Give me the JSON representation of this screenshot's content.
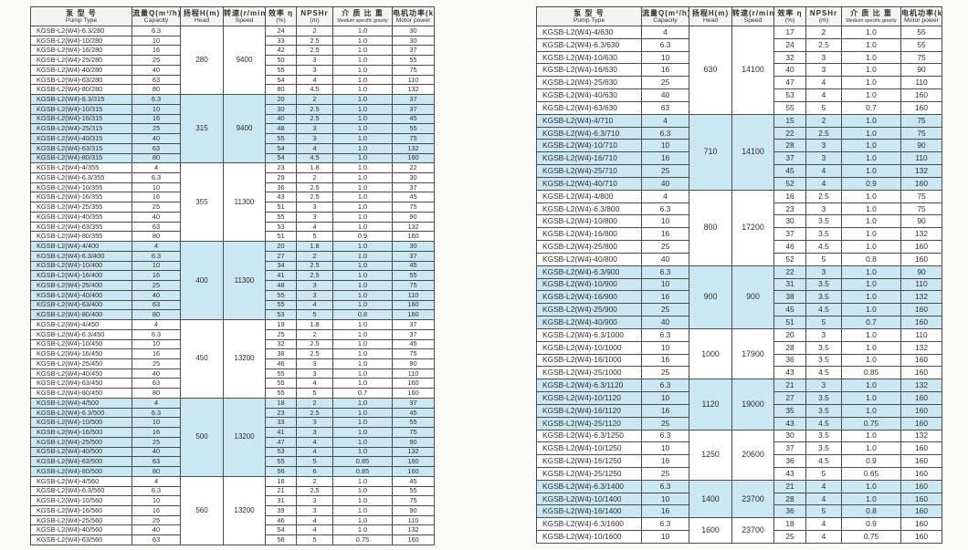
{
  "document": {
    "type": "pump-specification-table",
    "series": "KGSB-L2(W4)"
  },
  "colors": {
    "band_blue": "#cbe7f1",
    "header_bg": "#f4f4f2",
    "border": "#4c4c4c",
    "page_bg": "#fafaf8"
  },
  "columns": [
    {
      "zh": "泵 型 号",
      "en": "Pump Type"
    },
    {
      "zh": "流量Q(m³/h)",
      "en": "Capacity"
    },
    {
      "zh": "扬程H(m)",
      "en": "Head"
    },
    {
      "zh": "转速(r/min)",
      "en": "Speed"
    },
    {
      "zh": "效率 η",
      "en": "(%)"
    },
    {
      "zh": "NPSHr",
      "en": "(m)"
    },
    {
      "zh": "介 质 比 重",
      "en": "Medium specific gravity"
    },
    {
      "zh": "电机功率(kW)",
      "en": "Motor power"
    }
  ],
  "tables": [
    {
      "id": "left",
      "groups": [
        {
          "head": "280",
          "speed": "9400",
          "shaded": false,
          "rows": [
            [
              "KGSB-L2(W4)-6.3/280",
              "6.3",
              "24",
              "2",
              "1.0",
              "30"
            ],
            [
              "KGSB-L2(W4)-10/280",
              "10",
              "33",
              "2.5",
              "1.0",
              "30"
            ],
            [
              "KGSB-L2(W4)-16/280",
              "16",
              "42",
              "2.5",
              "1.0",
              "37"
            ],
            [
              "KGSB-L2(W4)-25/280",
              "25",
              "50",
              "3",
              "1.0",
              "55"
            ],
            [
              "KGSB-L2(W4)-40/280",
              "40",
              "55",
              "3",
              "1.0",
              "75"
            ],
            [
              "KGSB-L2(W4)-63/280",
              "63",
              "54",
              "4",
              "1.0",
              "110"
            ],
            [
              "KGSB-L2(W4)-80/280",
              "80",
              "80",
              "4.5",
              "1.0",
              "132"
            ]
          ]
        },
        {
          "head": "315",
          "speed": "9400",
          "shaded": true,
          "rows": [
            [
              "KGSB-L2(W4)-6.3/315",
              "6.3",
              "20",
              "2",
              "1.0",
              "37"
            ],
            [
              "KGSB-L2(W4)-10/315",
              "10",
              "30",
              "2.5",
              "1.0",
              "37"
            ],
            [
              "KGSB-L2(W4)-16/315",
              "16",
              "40",
              "2.5",
              "1.0",
              "45"
            ],
            [
              "KGSB-L2(W4)-25/315",
              "25",
              "48",
              "3",
              "1.0",
              "55"
            ],
            [
              "KGSB-L2(W4)-40/315",
              "40",
              "55",
              "3",
              "1.0",
              "75"
            ],
            [
              "KGSB-L2(W4)-63/315",
              "63",
              "54",
              "4",
              "1.0",
              "132"
            ],
            [
              "KGSB-L2(W4)-80/315",
              "80",
              "54",
              "4.5",
              "1.0",
              "160"
            ]
          ]
        },
        {
          "head": "355",
          "speed": "11300",
          "shaded": false,
          "rows": [
            [
              "KGSB-L2(W4)-4/355",
              "4",
              "23",
              "1.8",
              "1.0",
              "22"
            ],
            [
              "KGSB-L2(W4)-6.3/355",
              "6.3",
              "29",
              "2",
              "1.0",
              "30"
            ],
            [
              "KGSB-L2(W4)-10/355",
              "10",
              "36",
              "2.5",
              "1.0",
              "37"
            ],
            [
              "KGSB-L2(W4)-16/355",
              "16",
              "43",
              "2.5",
              "1.0",
              "45"
            ],
            [
              "KGSB-L2(W4)-25/355",
              "25",
              "51",
              "3",
              "1.0",
              "75"
            ],
            [
              "KGSB-L2(W4)-40/355",
              "40",
              "55",
              "3",
              "1.0",
              "90"
            ],
            [
              "KGSB-L2(W4)-63/355",
              "63",
              "53",
              "4",
              "1.0",
              "132"
            ],
            [
              "KGSB-L2(W4)-80/355",
              "80",
              "51",
              "5",
              "0.9",
              "160"
            ]
          ]
        },
        {
          "head": "400",
          "speed": "11300",
          "shaded": true,
          "rows": [
            [
              "KGSB-L2(W4)-4/400",
              "4",
              "20",
              "1.8",
              "1.0",
              "30"
            ],
            [
              "KGSB-L2(W4)-6.3/400",
              "6.3",
              "27",
              "2",
              "1.0",
              "37"
            ],
            [
              "KGSB-L2(W4)-10/400",
              "10",
              "34",
              "2.5",
              "1.0",
              "45"
            ],
            [
              "KGSB-L2(W4)-16/400",
              "16",
              "41",
              "2.5",
              "1.0",
              "55"
            ],
            [
              "KGSB-L2(W4)-25/400",
              "25",
              "48",
              "3",
              "1.0",
              "75"
            ],
            [
              "KGSB-L2(W4)-40/400",
              "40",
              "55",
              "3",
              "1.0",
              "110"
            ],
            [
              "KGSB-L2(W4)-63/400",
              "63",
              "55",
              "4",
              "1.0",
              "160"
            ],
            [
              "KGSB-L2(W4)-80/400",
              "80",
              "53",
              "5",
              "0.8",
              "160"
            ]
          ]
        },
        {
          "head": "450",
          "speed": "13200",
          "shaded": false,
          "rows": [
            [
              "KGSB-L2(W4)-4/450",
              "4",
              "19",
              "1.8",
              "1.0",
              "37"
            ],
            [
              "KGSB-L2(W4)-6.3/450",
              "6.3",
              "25",
              "2",
              "1.0",
              "37"
            ],
            [
              "KGSB-L2(W4)-10/450",
              "10",
              "32",
              "2.5",
              "1.0",
              "45"
            ],
            [
              "KGSB-L2(W4)-16/450",
              "16",
              "38",
              "2.5",
              "1.0",
              "75"
            ],
            [
              "KGSB-L2(W4)-25/450",
              "25",
              "46",
              "3",
              "1.0",
              "90"
            ],
            [
              "KGSB-L2(W4)-40/450",
              "40",
              "55",
              "3",
              "1.0",
              "110"
            ],
            [
              "KGSB-L2(W4)-63/450",
              "63",
              "55",
              "4",
              "1.0",
              "160"
            ],
            [
              "KGSB-L2(W4)-80/450",
              "80",
              "55",
              "5",
              "0.7",
              "160"
            ]
          ]
        },
        {
          "head": "500",
          "speed": "13200",
          "shaded": true,
          "rows": [
            [
              "KGSB-L2(W4)-4/500",
              "4",
              "18",
              "2",
              "1.0",
              "37"
            ],
            [
              "KGSB-L2(W4)-6.3/500",
              "6.3",
              "23",
              "2.5",
              "1.0",
              "45"
            ],
            [
              "KGSB-L2(W4)-10/500",
              "10",
              "33",
              "3",
              "1.0",
              "55"
            ],
            [
              "KGSB-L2(W4)-16/500",
              "16",
              "41",
              "3",
              "1.0",
              "75"
            ],
            [
              "KGSB-L2(W4)-25/500",
              "25",
              "47",
              "4",
              "1.0",
              "90"
            ],
            [
              "KGSB-L2(W4)-40/500",
              "40",
              "53",
              "4",
              "1.0",
              "132"
            ],
            [
              "KGSB-L2(W4)-63/500",
              "63",
              "55",
              "5",
              "0.85",
              "160"
            ],
            [
              "KGSB-L2(W4)-80/500",
              "80",
              "56",
              "6",
              "0.85",
              "160"
            ]
          ]
        },
        {
          "head": "560",
          "speed": "13200",
          "shaded": false,
          "rows": [
            [
              "KGSB-L2(W4)-4/560",
              "4",
              "16",
              "2",
              "1.0",
              "45"
            ],
            [
              "KGSB-L2(W4)-6.3/560",
              "6.3",
              "21",
              "2.5",
              "1.0",
              "55"
            ],
            [
              "KGSB-L2(W4)-10/560",
              "10",
              "31",
              "3",
              "1.0",
              "75"
            ],
            [
              "KGSB-L2(W4)-16/560",
              "16",
              "39",
              "3",
              "1.0",
              "90"
            ],
            [
              "KGSB-L2(W4)-25/560",
              "25",
              "46",
              "4",
              "1.0",
              "110"
            ],
            [
              "KGSB-L2(W4)-40/560",
              "40",
              "54",
              "4",
              "1.0",
              "132"
            ],
            [
              "KGSB-L2(W4)-63/560",
              "63",
              "56",
              "5",
              "0.75",
              "160"
            ]
          ]
        }
      ]
    },
    {
      "id": "right",
      "groups": [
        {
          "head": "630",
          "speed": "14100",
          "shaded": false,
          "rows": [
            [
              "KGSB-L2(W4)-4/630",
              "4",
              "17",
              "2",
              "1.0",
              "55"
            ],
            [
              "KGSB-L2(W4)-6.3/630",
              "6.3",
              "24",
              "2.5",
              "1.0",
              "55"
            ],
            [
              "KGSB-L2(W4)-10/630",
              "10",
              "32",
              "3",
              "1.0",
              "75"
            ],
            [
              "KGSB-L2(W4)-16/630",
              "16",
              "40",
              "3",
              "1.0",
              "90"
            ],
            [
              "KGSB-L2(W4)-25/630",
              "25",
              "47",
              "4",
              "1.0",
              "110"
            ],
            [
              "KGSB-L2(W4)-40/630",
              "40",
              "53",
              "4",
              "1.0",
              "160"
            ],
            [
              "KGSB-L2(W4)-63/630",
              "63",
              "55",
              "5",
              "0.7",
              "160"
            ]
          ]
        },
        {
          "head": "710",
          "speed": "14100",
          "shaded": true,
          "rows": [
            [
              "KGSB-L2(W4)-4/710",
              "4",
              "15",
              "2",
              "1.0",
              "75"
            ],
            [
              "KGSB-L2(W4)-6.3/710",
              "6.3",
              "22",
              "2.5",
              "1.0",
              "75"
            ],
            [
              "KGSB-L2(W4)-10/710",
              "10",
              "28",
              "3",
              "1.0",
              "90"
            ],
            [
              "KGSB-L2(W4)-16/710",
              "16",
              "37",
              "3",
              "1.0",
              "110"
            ],
            [
              "KGSB-L2(W4)-25/710",
              "25",
              "45",
              "4",
              "1.0",
              "132"
            ],
            [
              "KGSB-L2(W4)-40/710",
              "40",
              "52",
              "4",
              "0.9",
              "160"
            ]
          ]
        },
        {
          "head": "800",
          "speed": "17200",
          "shaded": false,
          "rows": [
            [
              "KGSB-L2(W4)-4/800",
              "4",
              "16",
              "2.5",
              "1.0",
              "75"
            ],
            [
              "KGSB-L2(W4)-6.3/800",
              "6.3",
              "23",
              "3",
              "1.0",
              "75"
            ],
            [
              "KGSB-L2(W4)-10/800",
              "10",
              "30",
              "3.5",
              "1.0",
              "90"
            ],
            [
              "KGSB-L2(W4)-16/800",
              "16",
              "37",
              "3.5",
              "1.0",
              "132"
            ],
            [
              "KGSB-L2(W4)-25/800",
              "25",
              "46",
              "4.5",
              "1.0",
              "160"
            ],
            [
              "KGSB-L2(W4)-40/800",
              "40",
              "52",
              "5",
              "0.8",
              "160"
            ]
          ]
        },
        {
          "head": "900",
          "speed": "900",
          "shaded": true,
          "rows": [
            [
              "KGSB-L2(W4)-6.3/900",
              "6.3",
              "22",
              "3",
              "1.0",
              "90"
            ],
            [
              "KGSB-L2(W4)-10/900",
              "10",
              "31",
              "3.5",
              "1.0",
              "110"
            ],
            [
              "KGSB-L2(W4)-16/900",
              "16",
              "38",
              "3.5",
              "1.0",
              "132"
            ],
            [
              "KGSB-L2(W4)-25/900",
              "25",
              "45",
              "4.5",
              "1.0",
              "160"
            ],
            [
              "KGSB-L2(W4)-40/900",
              "40",
              "51",
              "5",
              "0.7",
              "160"
            ]
          ]
        },
        {
          "head": "1000",
          "speed": "17900",
          "shaded": false,
          "rows": [
            [
              "KGSB-L2(W4)-6.3/1000",
              "6.3",
              "20",
              "3",
              "1.0",
              "110"
            ],
            [
              "KGSB-L2(W4)-10/1000",
              "10",
              "28",
              "3.5",
              "1.0",
              "132"
            ],
            [
              "KGSB-L2(W4)-16/1000",
              "16",
              "36",
              "3.5",
              "1.0",
              "160"
            ],
            [
              "KGSB-L2(W4)-25/1000",
              "25",
              "43",
              "4.5",
              "0.85",
              "160"
            ]
          ]
        },
        {
          "head": "1120",
          "speed": "19000",
          "shaded": true,
          "rows": [
            [
              "KGSB-L2(W4)-6.3/1120",
              "6.3",
              "21",
              "3",
              "1.0",
              "132"
            ],
            [
              "KGSB-L2(W4)-10/1120",
              "10",
              "27",
              "3.5",
              "1.0",
              "160"
            ],
            [
              "KGSB-L2(W4)-16/1120",
              "16",
              "35",
              "3.5",
              "1.0",
              "160"
            ],
            [
              "KGSB-L2(W4)-25/1120",
              "25",
              "43",
              "4.5",
              "0.75",
              "160"
            ]
          ]
        },
        {
          "head": "1250",
          "speed": "20600",
          "shaded": false,
          "rows": [
            [
              "KGSB-L2(W4)-6.3/1250",
              "6.3",
              "30",
              "3.5",
              "1.0",
              "132"
            ],
            [
              "KGSB-L2(W4)-10/1250",
              "10",
              "37",
              "3.5",
              "1.0",
              "160"
            ],
            [
              "KGSB-L2(W4)-16/1250",
              "16",
              "36",
              "4.5",
              "0.9",
              "160"
            ],
            [
              "KGSB-L2(W4)-25/1250",
              "25",
              "43",
              "5",
              "0.65",
              "160"
            ]
          ]
        },
        {
          "head": "1400",
          "speed": "23700",
          "shaded": true,
          "rows": [
            [
              "KGSB-L2(W4)-6.3/1400",
              "6.3",
              "21",
              "4",
              "1.0",
              "160"
            ],
            [
              "KGSB-L2(W4)-10/1400",
              "10",
              "28",
              "4",
              "1.0",
              "160"
            ],
            [
              "KGSB-L2(W4)-16/1400",
              "16",
              "36",
              "5",
              "0.8",
              "160"
            ]
          ]
        },
        {
          "head": "1600",
          "speed": "23700",
          "shaded": false,
          "rows": [
            [
              "KGSB-L2(W4)-6.3/1600",
              "6.3",
              "18",
              "4",
              "0.9",
              "160"
            ],
            [
              "KGSB-L2(W4)-10/1600",
              "10",
              "25",
              "4",
              "0.75",
              "160"
            ]
          ]
        }
      ]
    }
  ]
}
